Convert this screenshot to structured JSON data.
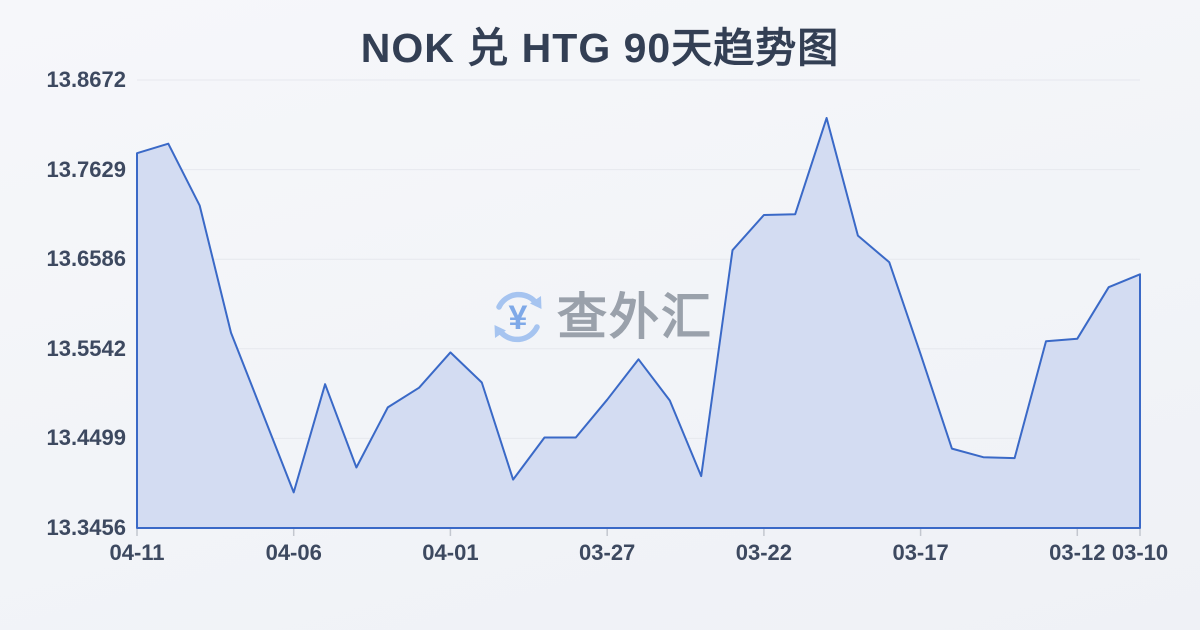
{
  "title": "NOK 兑 HTG 90天趋势图",
  "watermark": {
    "icon": "currency-exchange-icon",
    "text": "查外汇",
    "currency_symbol": "¥"
  },
  "colors": {
    "line": "#3a69c7",
    "fill": "#d3dcf2",
    "grid": "#e6e8ee",
    "tick": "#c3c7cf",
    "title_text": "#333f54",
    "axis_text": "#3d4960",
    "watermark_text": "#9aa1ab",
    "watermark_icon": "#a6c4f0",
    "watermark_symbol": "#7fa9e8"
  },
  "chart_data": {
    "type": "area",
    "title": "NOK 兑 HTG 90天趋势图",
    "x": [
      "04-11",
      "04-10",
      "04-09",
      "04-08",
      "04-07",
      "04-06",
      "04-05",
      "04-04",
      "04-03",
      "04-02",
      "04-01",
      "03-31",
      "03-30",
      "03-29",
      "03-28",
      "03-27",
      "03-26",
      "03-25",
      "03-24",
      "03-23",
      "03-22",
      "03-21",
      "03-20",
      "03-19",
      "03-18",
      "03-17",
      "03-16",
      "03-15",
      "03-14",
      "03-13",
      "03-12",
      "03-11",
      "03-10"
    ],
    "values": [
      13.782,
      13.793,
      13.721,
      13.573,
      13.48,
      13.387,
      13.513,
      13.416,
      13.486,
      13.509,
      13.55,
      13.515,
      13.402,
      13.451,
      13.451,
      13.495,
      13.542,
      13.494,
      13.406,
      13.669,
      13.71,
      13.711,
      13.823,
      13.686,
      13.655,
      13.548,
      13.438,
      13.428,
      13.427,
      13.563,
      13.566,
      13.626,
      13.641
    ],
    "y_ticks": [
      13.8672,
      13.7629,
      13.6586,
      13.5542,
      13.4499,
      13.3456
    ],
    "y_tick_labels": [
      "13.8672",
      "13.7629",
      "13.6586",
      "13.5542",
      "13.4499",
      "13.3456"
    ],
    "x_tick_labels": [
      "04-11",
      "04-06",
      "04-01",
      "03-27",
      "03-22",
      "03-17",
      "03-12",
      "03-10"
    ],
    "ylim": [
      13.3456,
      13.8672
    ],
    "grid": true,
    "legend": "none",
    "x_axis_note": "dates run newest (left) to oldest (right)"
  }
}
